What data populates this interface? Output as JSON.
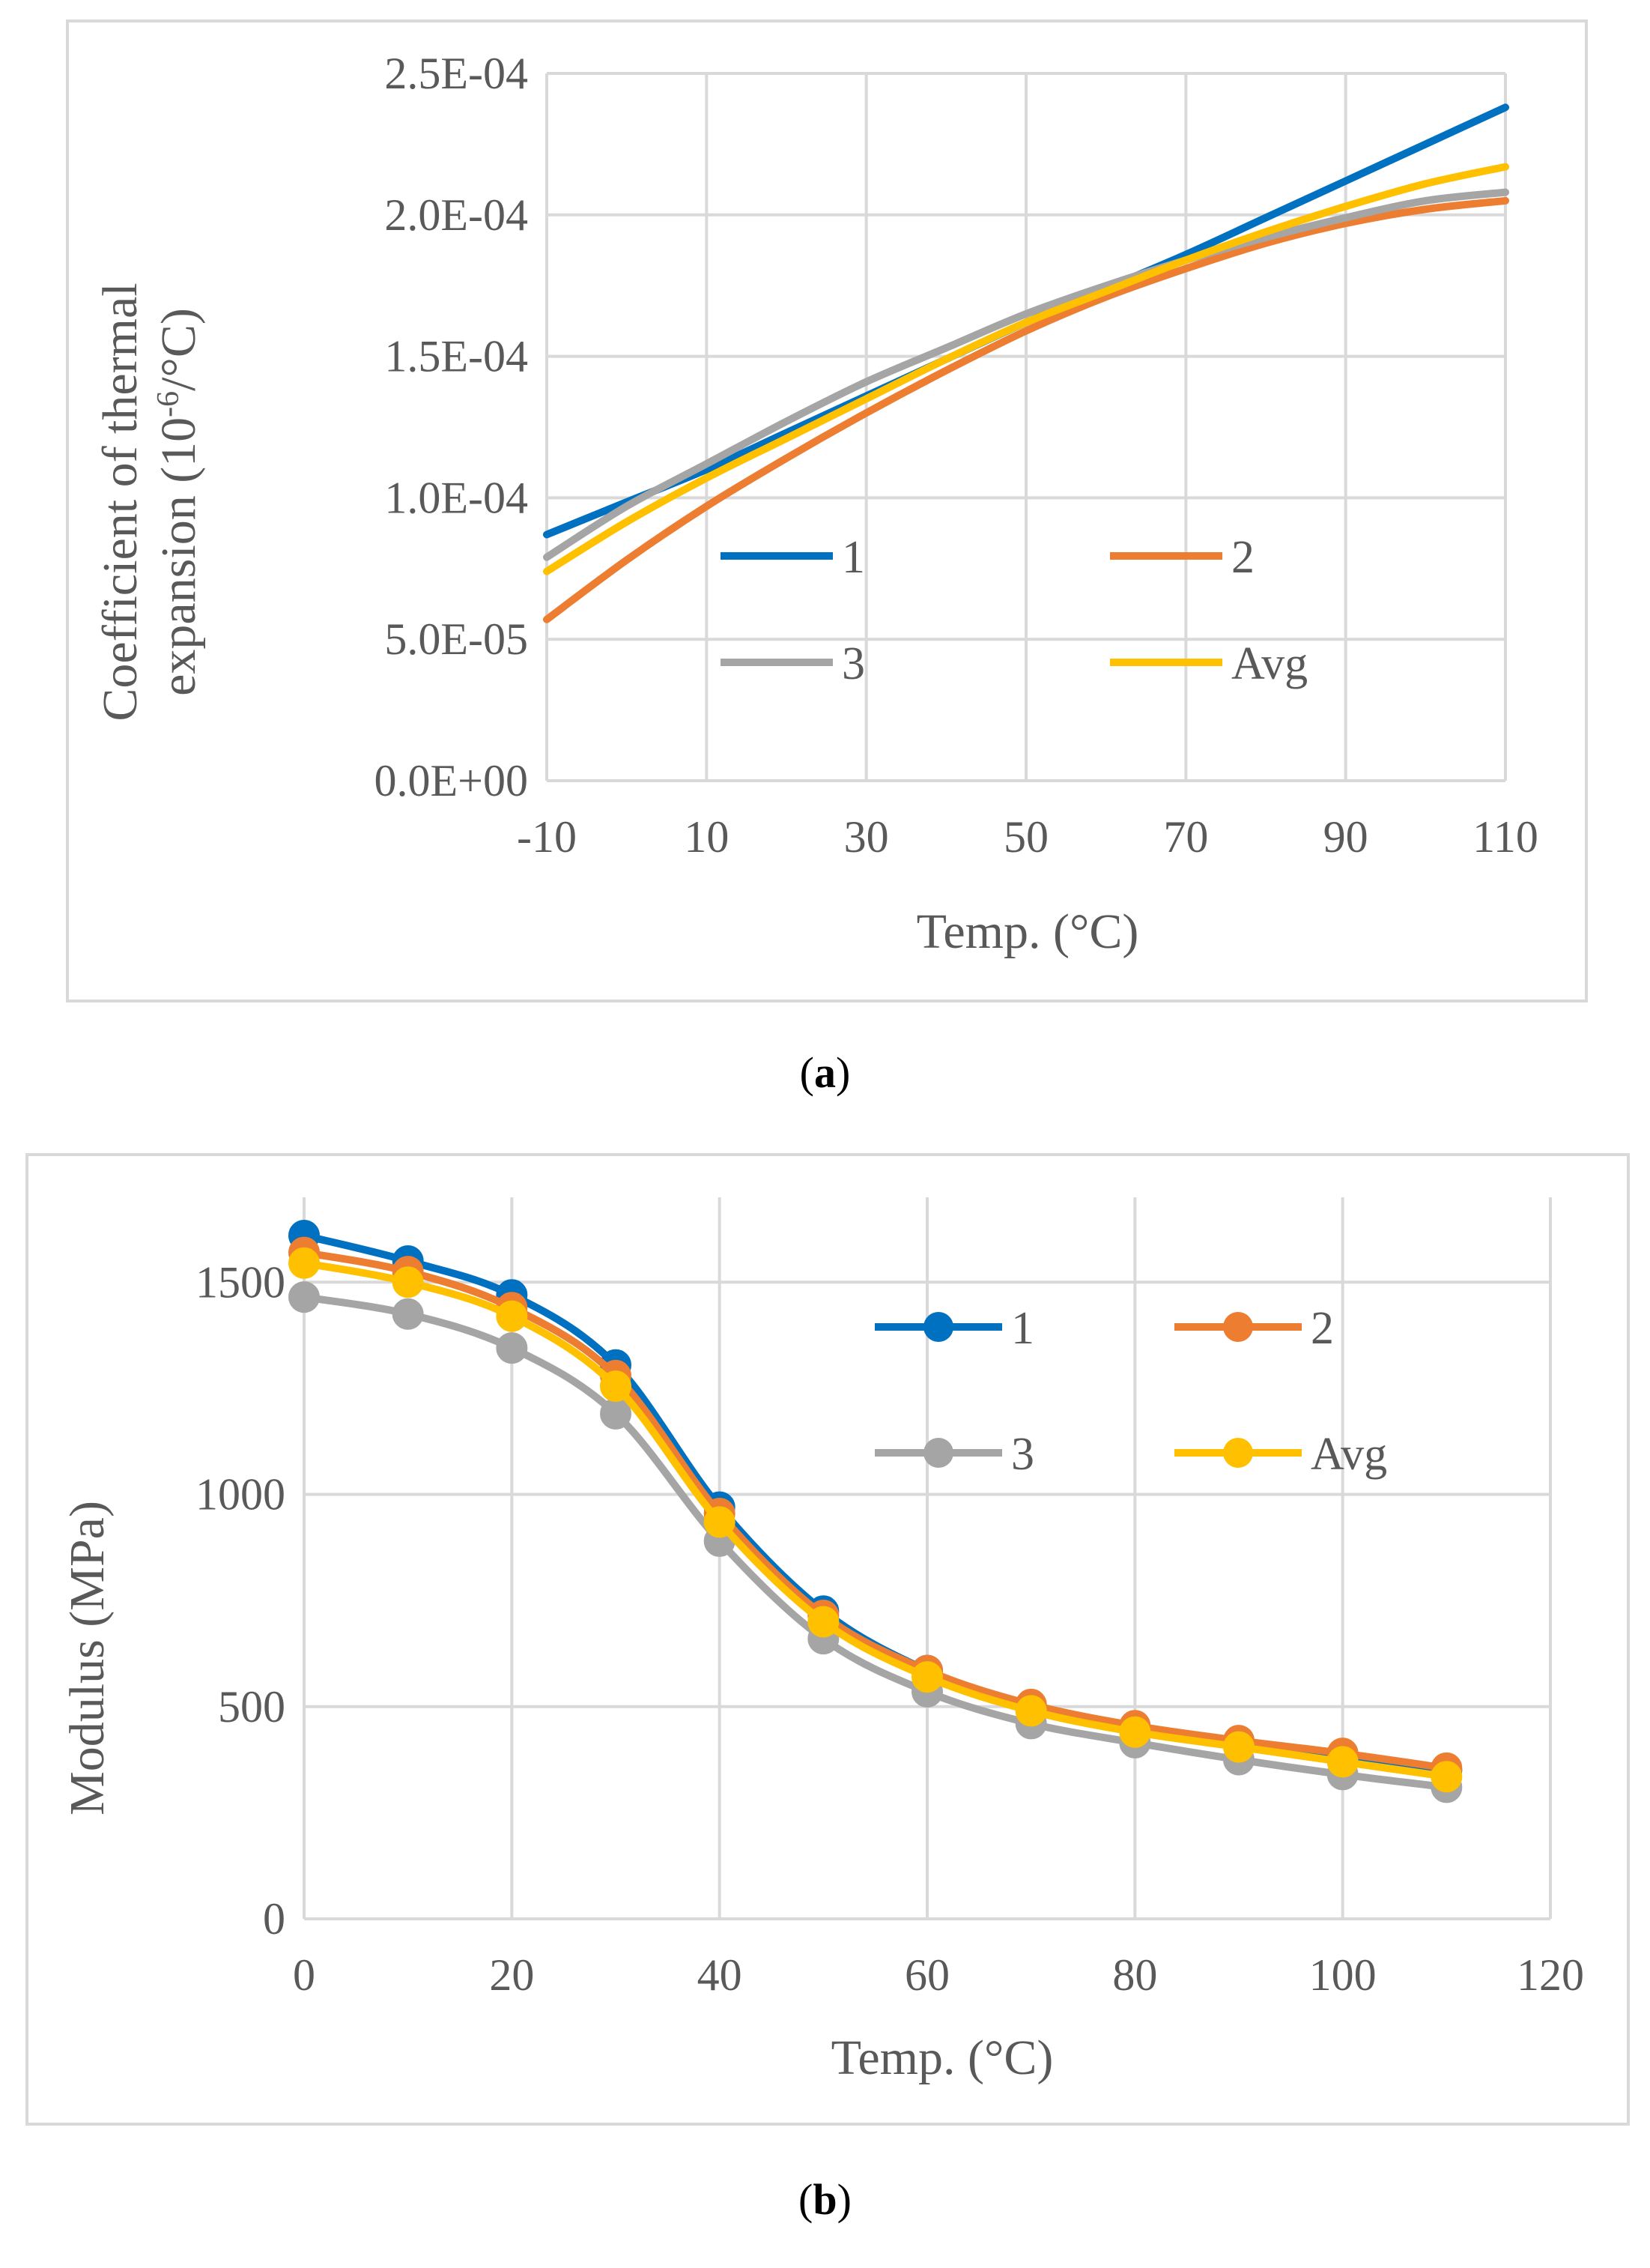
{
  "chart_data": [
    {
      "type": "line",
      "id": "a",
      "title": "",
      "xlabel": "Temp. (°C)",
      "ylabel_line1": "Coefficient of thermal",
      "ylabel_line2_prefix": "expansion (10",
      "ylabel_line2_sup": "-6",
      "ylabel_line2_suffix": "/°C)",
      "xlim": [
        -10,
        110
      ],
      "ylim": [
        0,
        0.00025
      ],
      "xticks": [
        -10,
        10,
        30,
        50,
        70,
        90,
        110
      ],
      "xtick_labels": [
        "-10",
        "10",
        "30",
        "50",
        "70",
        "90",
        "110"
      ],
      "yticks": [
        0,
        5e-05,
        0.0001,
        0.00015,
        0.0002,
        0.00025
      ],
      "ytick_labels": [
        "0.0E+00",
        "5.0E-05",
        "1.0E-04",
        "1.5E-04",
        "2.0E-04",
        "2.5E-04"
      ],
      "x": [
        -10,
        0,
        10,
        20,
        30,
        40,
        50,
        60,
        70,
        80,
        90,
        100,
        110
      ],
      "series": [
        {
          "name": "1",
          "color": "#0070C0",
          "values": [
            8.7e-05,
            9.85e-05,
            0.00011,
            0.000123,
            0.000136,
            0.000149,
            0.000162,
            0.000174,
            0.000186,
            0.000199,
            0.000212,
            0.000225,
            0.000238
          ]
        },
        {
          "name": "2",
          "color": "#ED7D31",
          "values": [
            5.7e-05,
            7.8e-05,
            9.7e-05,
            0.000114,
            0.00013,
            0.000145,
            0.000159,
            0.000171,
            0.000181,
            0.00019,
            0.000197,
            0.000202,
            0.000205
          ]
        },
        {
          "name": "3",
          "color": "#A5A5A5",
          "values": [
            7.9e-05,
            9.7e-05,
            0.000112,
            0.000127,
            0.000141,
            0.000153,
            0.000165,
            0.000175,
            0.000184,
            0.000192,
            0.000199,
            0.000205,
            0.000208
          ]
        },
        {
          "name": "Avg",
          "color": "#FFC000",
          "values": [
            7.4e-05,
            9.15e-05,
            0.000107,
            0.000121,
            0.000135,
            0.000149,
            0.000162,
            0.000173,
            0.000184,
            0.000194,
            0.000203,
            0.000211,
            0.000217
          ]
        }
      ],
      "markers": false,
      "legend": "inside center"
    },
    {
      "type": "line",
      "id": "b",
      "title": "",
      "xlabel": "Temp. (°C)",
      "ylabel": "Modulus (MPa)",
      "xlim": [
        0,
        120
      ],
      "ylim": [
        0,
        1700
      ],
      "xticks": [
        0,
        20,
        40,
        60,
        80,
        100,
        120
      ],
      "xtick_labels": [
        "0",
        "20",
        "40",
        "60",
        "80",
        "100",
        "120"
      ],
      "yticks": [
        0,
        500,
        1000,
        1500
      ],
      "ytick_labels": [
        "0",
        "500",
        "1000",
        "1500"
      ],
      "x": [
        0,
        10,
        20,
        30,
        40,
        50,
        60,
        70,
        80,
        90,
        100,
        110
      ],
      "series": [
        {
          "name": "1",
          "color": "#0070C0",
          "values": [
            1610,
            1550,
            1470,
            1305,
            970,
            725,
            585,
            500,
            450,
            415,
            385,
            350
          ]
        },
        {
          "name": "2",
          "color": "#ED7D31",
          "values": [
            1570,
            1525,
            1440,
            1280,
            955,
            715,
            585,
            505,
            455,
            420,
            390,
            355
          ]
        },
        {
          "name": "3",
          "color": "#A5A5A5",
          "values": [
            1465,
            1425,
            1345,
            1190,
            890,
            660,
            535,
            460,
            415,
            375,
            340,
            310
          ]
        },
        {
          "name": "Avg",
          "color": "#FFC000",
          "values": [
            1545,
            1500,
            1420,
            1255,
            935,
            700,
            570,
            490,
            440,
            405,
            370,
            335
          ]
        }
      ],
      "markers": true,
      "legend": "inside top-right"
    }
  ],
  "captions": {
    "a_open": "(",
    "a_letter": "a",
    "a_close": ")",
    "b_open": "(",
    "b_letter": "b",
    "b_close": ")"
  }
}
